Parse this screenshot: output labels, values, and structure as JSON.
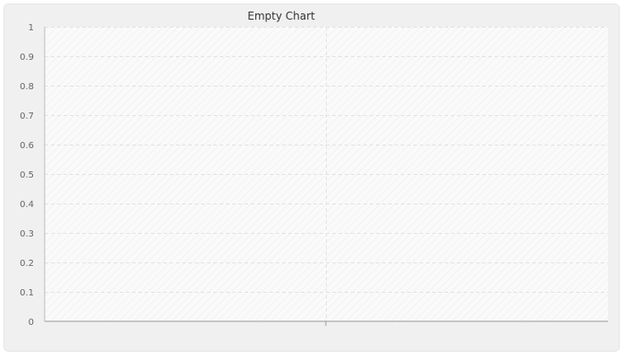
{
  "chart_data": {
    "type": "line",
    "title": "Empty Chart",
    "xlabel": "",
    "ylabel": "",
    "ylim": [
      0,
      1
    ],
    "y_ticks": [
      "0",
      "0.1",
      "0.2",
      "0.3",
      "0.4",
      "0.5",
      "0.6",
      "0.7",
      "0.8",
      "0.9",
      "1"
    ],
    "x_ticks": [],
    "series": [],
    "grid": true,
    "legend": "none"
  },
  "colors": {
    "background": "#f0f0f0",
    "plot_area": "#fafafa",
    "grid": "#e2e2e2",
    "axis": "#999999",
    "title": "#333333",
    "tick_label": "#666666"
  }
}
